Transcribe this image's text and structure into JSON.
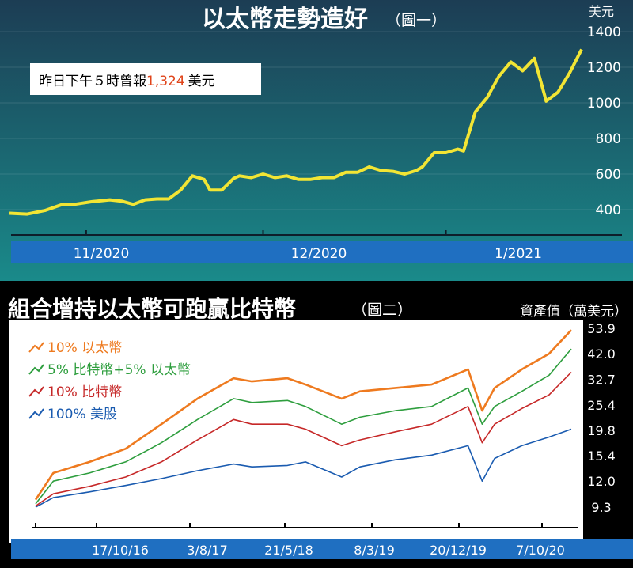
{
  "chart_data": [
    {
      "type": "line",
      "title": "以太幣走勢造好",
      "subtitle": "（圖一）",
      "ylabel": "美元",
      "ylim": [
        400,
        1400
      ],
      "yticks": [
        400,
        600,
        800,
        1000,
        1200,
        1400
      ],
      "xlabels": [
        "11/2020",
        "12/2020",
        "1/2021"
      ],
      "callout": {
        "prefix": "昨日下午５時曾報",
        "value": "1,324",
        "suffix": "美元"
      },
      "colors": {
        "line": "#f2e534",
        "axis_band": "#1f6fc1",
        "background_top": "#1c3d54",
        "background_bottom": "#1a8a8a",
        "callout_value": "#e0441a"
      },
      "series": [
        {
          "x": [
            "2020-10-19",
            "2020-10-22",
            "2020-10-25",
            "2020-10-28",
            "2020-10-30",
            "2020-11-02",
            "2020-11-05",
            "2020-11-07",
            "2020-11-09",
            "2020-11-11",
            "2020-11-13",
            "2020-11-15",
            "2020-11-17",
            "2020-11-19",
            "2020-11-21",
            "2020-11-22",
            "2020-11-24",
            "2020-11-26",
            "2020-11-27",
            "2020-11-29",
            "2020-12-01",
            "2020-12-03",
            "2020-12-05",
            "2020-12-07",
            "2020-12-09",
            "2020-12-11",
            "2020-12-13",
            "2020-12-15",
            "2020-12-17",
            "2020-12-19",
            "2020-12-21",
            "2020-12-23",
            "2020-12-25",
            "2020-12-27",
            "2020-12-28",
            "2020-12-30",
            "2021-01-01",
            "2021-01-03",
            "2021-01-04",
            "2021-01-06",
            "2021-01-08",
            "2021-01-10",
            "2021-01-12",
            "2021-01-14",
            "2021-01-16",
            "2021-01-18",
            "2021-01-20",
            "2021-01-22",
            "2021-01-24"
          ],
          "values": [
            380,
            375,
            395,
            430,
            430,
            445,
            455,
            448,
            430,
            455,
            460,
            460,
            510,
            590,
            570,
            510,
            510,
            575,
            590,
            580,
            600,
            580,
            590,
            570,
            570,
            580,
            580,
            610,
            610,
            640,
            620,
            615,
            600,
            620,
            640,
            720,
            720,
            740,
            730,
            950,
            1030,
            1150,
            1230,
            1180,
            1250,
            1010,
            1060,
            1170,
            1300
          ]
        }
      ]
    },
    {
      "type": "line",
      "title": "組合增持以太幣可跑贏比特幣",
      "subtitle": "（圖二）",
      "ylabel": "資產值（萬美元）",
      "yscale": "log",
      "yticks": [
        9.3,
        12.0,
        15.4,
        19.8,
        25.4,
        32.7,
        42.0,
        53.9
      ],
      "ytick_labels": [
        "9.3",
        "12.0",
        "15.4",
        "19.8",
        "25.4",
        "32.7",
        "42.0",
        "53.9"
      ],
      "xlabels": [
        "17/10/16",
        "3/8/17",
        "21/5/18",
        "8/3/19",
        "20/12/19",
        "7/10/20"
      ],
      "legend_position": "top-left",
      "series": [
        {
          "name": "10% 以太幣",
          "color": "#ee7a1f",
          "x": [
            "2016-02-01",
            "2016-04-01",
            "2016-08-01",
            "2016-12-01",
            "2017-04-01",
            "2017-08-01",
            "2017-12-01",
            "2018-02-01",
            "2018-06-01",
            "2018-08-01",
            "2018-12-01",
            "2019-02-01",
            "2019-06-01",
            "2019-10-01",
            "2020-02-01",
            "2020-03-20",
            "2020-05-01",
            "2020-08-01",
            "2020-11-01",
            "2021-01-15"
          ],
          "values": [
            10.0,
            13.0,
            14.5,
            16.5,
            21.0,
            27.0,
            33.0,
            32.0,
            33.0,
            31.0,
            27.0,
            29.0,
            30.0,
            31.0,
            36.0,
            24.0,
            30.0,
            36.0,
            42.0,
            53.0
          ]
        },
        {
          "name": "5% 比特幣+5% 以太幣",
          "color": "#2e9e3e",
          "x": [
            "2016-02-01",
            "2016-04-01",
            "2016-08-01",
            "2016-12-01",
            "2017-04-01",
            "2017-08-01",
            "2017-12-01",
            "2018-02-01",
            "2018-06-01",
            "2018-08-01",
            "2018-12-01",
            "2019-02-01",
            "2019-06-01",
            "2019-10-01",
            "2020-02-01",
            "2020-03-20",
            "2020-05-01",
            "2020-08-01",
            "2020-11-01",
            "2021-01-15"
          ],
          "values": [
            9.6,
            12.0,
            13.0,
            14.5,
            17.5,
            22.0,
            27.0,
            26.0,
            26.5,
            25.0,
            21.0,
            22.5,
            24.0,
            25.0,
            30.0,
            21.0,
            25.0,
            29.0,
            34.0,
            44.0
          ]
        },
        {
          "name": "10% 比特幣",
          "color": "#c62828",
          "x": [
            "2016-02-01",
            "2016-04-01",
            "2016-08-01",
            "2016-12-01",
            "2017-04-01",
            "2017-08-01",
            "2017-12-01",
            "2018-02-01",
            "2018-06-01",
            "2018-08-01",
            "2018-12-01",
            "2019-02-01",
            "2019-06-01",
            "2019-10-01",
            "2020-02-01",
            "2020-03-20",
            "2020-05-01",
            "2020-08-01",
            "2020-11-01",
            "2021-01-15"
          ],
          "values": [
            9.4,
            10.6,
            11.4,
            12.5,
            14.5,
            18.0,
            22.0,
            21.0,
            21.0,
            20.0,
            17.0,
            18.0,
            19.5,
            21.0,
            25.0,
            17.5,
            21.0,
            24.5,
            28.0,
            35.0
          ]
        },
        {
          "name": "100% 美股",
          "color": "#1a5bb0",
          "x": [
            "2016-02-01",
            "2016-04-01",
            "2016-08-01",
            "2016-12-01",
            "2017-04-01",
            "2017-08-01",
            "2017-12-01",
            "2018-02-01",
            "2018-06-01",
            "2018-08-01",
            "2018-12-01",
            "2019-02-01",
            "2019-06-01",
            "2019-10-01",
            "2020-02-01",
            "2020-03-20",
            "2020-05-01",
            "2020-08-01",
            "2020-11-01",
            "2021-01-15"
          ],
          "values": [
            9.3,
            10.2,
            10.8,
            11.5,
            12.3,
            13.3,
            14.2,
            13.8,
            14.0,
            14.5,
            12.5,
            13.8,
            14.8,
            15.5,
            17.0,
            12.0,
            15.0,
            17.0,
            18.5,
            20.0
          ]
        }
      ]
    }
  ]
}
